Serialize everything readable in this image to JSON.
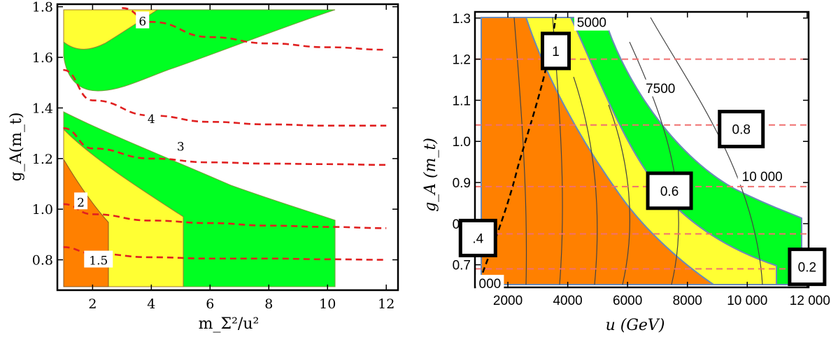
{
  "chart_data": [
    {
      "type": "contour",
      "xlabel": "m_Σ²/u²",
      "ylabel": "g_A(m_t)",
      "xlim": [
        0.8,
        12.4
      ],
      "ylim": [
        0.68,
        1.81
      ],
      "xticks": [
        "2",
        "4",
        "6",
        "8",
        "10",
        "12"
      ],
      "yticks": [
        "0.8",
        "1.0",
        "1.2",
        "1.4",
        "1.6",
        "1.8"
      ],
      "regions": [
        {
          "name": "orange",
          "color": "#ff8000",
          "x_range": [
            1,
            2.5
          ]
        },
        {
          "name": "yellow",
          "color": "#ffff33",
          "x_range": [
            2.5,
            5
          ]
        },
        {
          "name": "green",
          "color": "#00ff22",
          "x_range": [
            5,
            10
          ]
        }
      ],
      "dashed_contours": [
        {
          "label": "1.5",
          "x": [
            1,
            2,
            4,
            6,
            8,
            10,
            12
          ],
          "y": [
            0.85,
            0.825,
            0.81,
            0.805,
            0.805,
            0.802,
            0.8
          ]
        },
        {
          "label": "2",
          "x": [
            1,
            2,
            4,
            6,
            8,
            10,
            12
          ],
          "y": [
            1.02,
            0.98,
            0.955,
            0.945,
            0.935,
            0.93,
            0.925
          ]
        },
        {
          "label": "3",
          "x": [
            1,
            2,
            4,
            6,
            8,
            10,
            12
          ],
          "y": [
            1.32,
            1.24,
            1.2,
            1.185,
            1.18,
            1.178,
            1.175
          ]
        },
        {
          "label": "4",
          "x": [
            1,
            2,
            4,
            6,
            8,
            10,
            12
          ],
          "y": [
            1.55,
            1.43,
            1.37,
            1.345,
            1.335,
            1.33,
            1.33
          ]
        },
        {
          "label": "6",
          "x": [
            3,
            4,
            6,
            8,
            10,
            12
          ],
          "y": [
            1.795,
            1.74,
            1.68,
            1.655,
            1.64,
            1.63
          ]
        }
      ]
    },
    {
      "type": "contour",
      "xlabel": "u (GeV)",
      "ylabel": "g_A (m_t)",
      "xlim": [
        900,
        12050
      ],
      "ylim": [
        0.645,
        1.315
      ],
      "xticks": [
        "2000",
        "4000",
        "6000",
        "8000",
        "10 000",
        "12 000"
      ],
      "yticks": [
        "0.7",
        "0.8",
        "0.9",
        "1.0",
        "1.1",
        "1.2",
        "1.3"
      ],
      "regions": [
        {
          "name": "orange",
          "color": "#ff8000"
        },
        {
          "name": "yellow",
          "color": "#ffff33"
        },
        {
          "name": "green",
          "color": "#00ff22"
        }
      ],
      "thin_contour_labels": [
        "5000",
        "7500",
        "10 000",
        "000"
      ],
      "boxed_labels": [
        "1",
        "0.8",
        "0.6",
        ".4",
        "0.2"
      ],
      "pink_dashed_y": [
        0.69,
        0.775,
        0.89,
        1.04,
        1.2
      ]
    }
  ]
}
